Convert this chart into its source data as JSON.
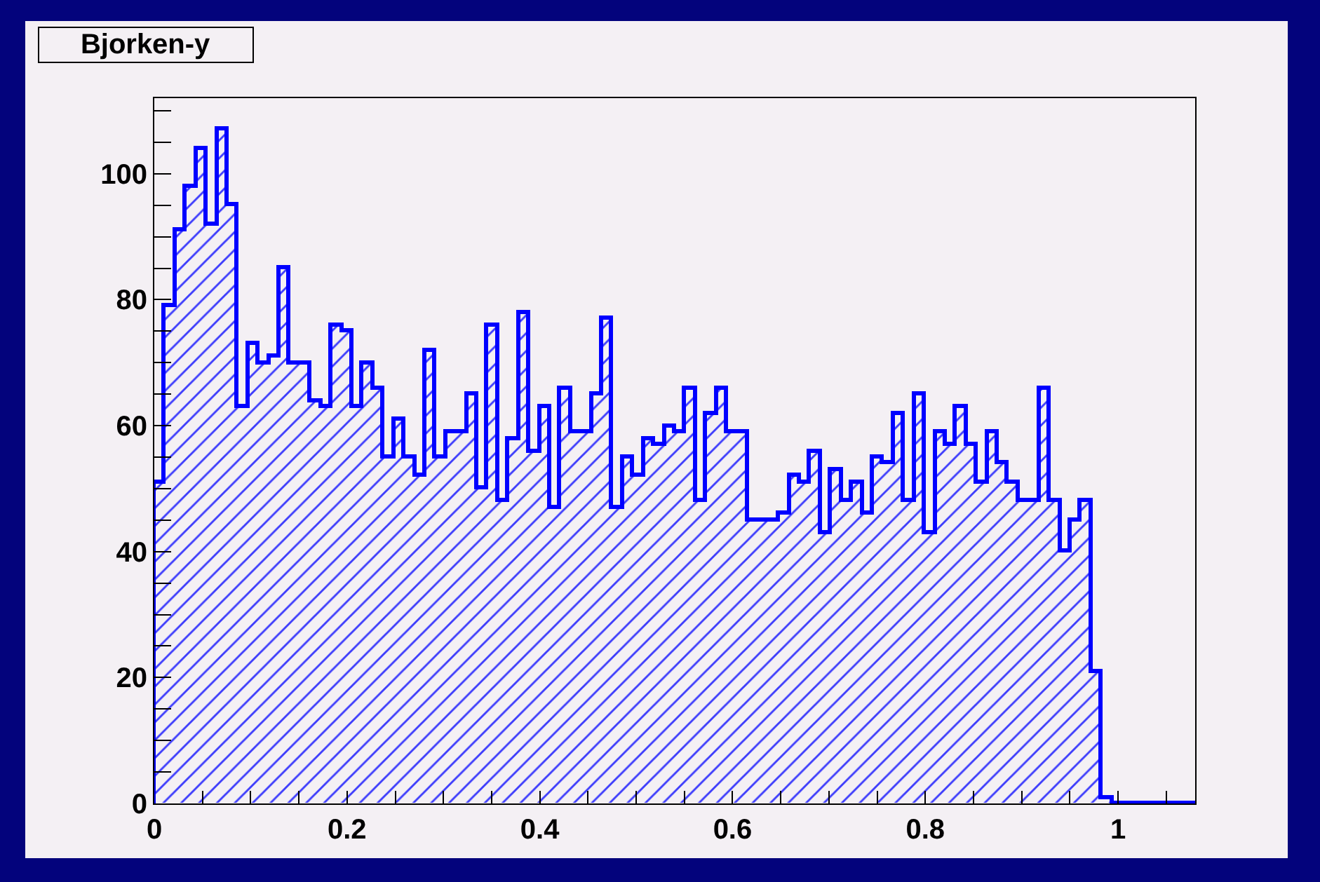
{
  "chart_data": {
    "type": "histogram",
    "title": "Bjorken-y",
    "color": "#0000ff",
    "bins": [
      0,
      0.0108,
      0.0216,
      0.0324,
      0.0432,
      0.054,
      0.0648,
      0.0756,
      0.0864,
      0.0972,
      0.108,
      0.1188,
      0.1296,
      0.1404,
      0.1512,
      0.162,
      0.1728,
      0.1836,
      0.1944,
      0.2052,
      0.216,
      0.2268,
      0.2376,
      0.2484,
      0.2592,
      0.27,
      0.2808,
      0.2916,
      0.3024,
      0.3132,
      0.324,
      0.3348,
      0.3456,
      0.3564,
      0.3672,
      0.378,
      0.3888,
      0.3996,
      0.4104,
      0.4212,
      0.432,
      0.4428,
      0.4536,
      0.4644,
      0.4752,
      0.486,
      0.4968,
      0.5076,
      0.5184,
      0.5292,
      0.54,
      0.5508,
      0.5616,
      0.5724,
      0.5832,
      0.594,
      0.6048,
      0.6156,
      0.6264,
      0.6372,
      0.648,
      0.6588,
      0.6696,
      0.6804,
      0.6912,
      0.702,
      0.7128,
      0.7236,
      0.7344,
      0.7452,
      0.756,
      0.7668,
      0.7776,
      0.7884,
      0.7992,
      0.81,
      0.8208,
      0.8316,
      0.8424,
      0.8532,
      0.864,
      0.8748,
      0.8856,
      0.8964,
      0.9072,
      0.918,
      0.9288,
      0.9396,
      0.9504,
      0.9612,
      0.972,
      0.9828,
      0.9936,
      1.0044,
      1.0152,
      1.026,
      1.0368,
      1.0476,
      1.0584,
      1.0692,
      1.08
    ],
    "values": [
      51,
      79,
      91,
      98,
      104,
      92,
      107,
      95,
      63,
      73,
      70,
      71,
      85,
      70,
      70,
      64,
      63,
      76,
      75,
      63,
      70,
      66,
      55,
      61,
      55,
      52,
      72,
      55,
      59,
      59,
      65,
      50,
      76,
      48,
      58,
      78,
      56,
      63,
      47,
      66,
      59,
      59,
      65,
      77,
      47,
      55,
      52,
      58,
      57,
      60,
      59,
      66,
      48,
      62,
      66,
      59,
      59,
      45,
      45,
      45,
      46,
      52,
      51,
      56,
      43,
      53,
      48,
      51,
      46,
      55,
      54,
      62,
      48,
      65,
      43,
      59,
      57,
      63,
      57,
      51,
      59,
      54,
      51,
      48,
      48,
      66,
      48,
      40,
      45,
      48,
      21,
      1,
      0,
      0,
      0,
      0,
      0,
      0,
      0,
      0
    ],
    "xlim": [
      0,
      1.08
    ],
    "ylim": [
      0,
      112
    ],
    "xticks": [
      0,
      {
        "value": 0.05,
        "label": null
      },
      {
        "value": 0.1,
        "label": null
      },
      {
        "value": 0.15,
        "label": null
      },
      0.2,
      {
        "value": 0.25,
        "label": null
      },
      {
        "value": 0.3,
        "label": null
      },
      {
        "value": 0.35,
        "label": null
      },
      0.4,
      {
        "value": 0.45,
        "label": null
      },
      {
        "value": 0.5,
        "label": null
      },
      {
        "value": 0.55,
        "label": null
      },
      0.6,
      {
        "value": 0.65,
        "label": null
      },
      {
        "value": 0.7,
        "label": null
      },
      {
        "value": 0.75,
        "label": null
      },
      0.8,
      {
        "value": 0.85,
        "label": null
      },
      {
        "value": 0.9,
        "label": null
      },
      {
        "value": 0.95,
        "label": null
      },
      1,
      {
        "value": 1.05,
        "label": null
      }
    ],
    "yticks": [
      0,
      {
        "value": 5,
        "label": null
      },
      {
        "value": 10,
        "label": null
      },
      {
        "value": 15,
        "label": null
      },
      20,
      {
        "value": 25,
        "label": null
      },
      {
        "value": 30,
        "label": null
      },
      {
        "value": 35,
        "label": null
      },
      40,
      {
        "value": 45,
        "label": null
      },
      {
        "value": 50,
        "label": null
      },
      {
        "value": 55,
        "label": null
      },
      60,
      {
        "value": 65,
        "label": null
      },
      {
        "value": 70,
        "label": null
      },
      {
        "value": 75,
        "label": null
      },
      80,
      {
        "value": 85,
        "label": null
      },
      {
        "value": 90,
        "label": null
      },
      {
        "value": 95,
        "label": null
      },
      100,
      {
        "value": 105,
        "label": null
      },
      {
        "value": 110,
        "label": null
      }
    ]
  }
}
